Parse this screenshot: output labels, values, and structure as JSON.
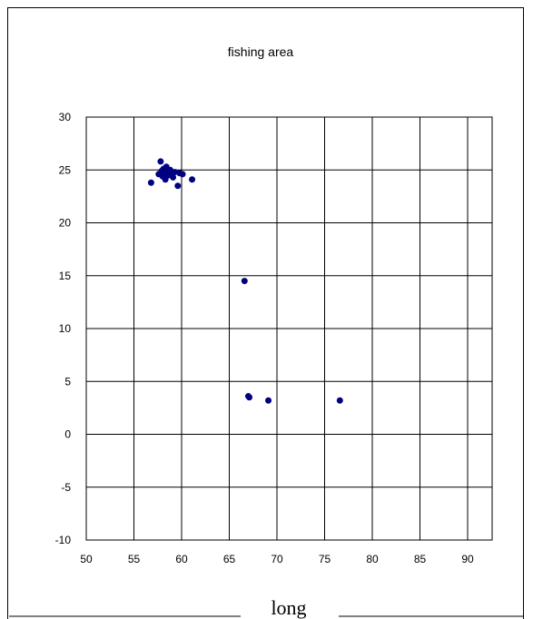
{
  "chart_data": {
    "type": "scatter",
    "title": "fishing area",
    "xlabel": "long",
    "ylabel": "",
    "xlim": [
      50,
      95
    ],
    "ylim": [
      -10,
      30
    ],
    "xticks": [
      50,
      55,
      60,
      65,
      70,
      75,
      80,
      85,
      90
    ],
    "yticks": [
      -10,
      -5,
      0,
      5,
      10,
      15,
      20,
      25,
      30
    ],
    "grid": true,
    "marker_color": "#000080",
    "series": [
      {
        "points": [
          [
            56.8,
            23.8
          ],
          [
            57.6,
            24.6
          ],
          [
            57.8,
            25.8
          ],
          [
            57.9,
            24.9
          ],
          [
            58.0,
            24.4
          ],
          [
            58.1,
            25.1
          ],
          [
            58.2,
            24.7
          ],
          [
            58.3,
            24.1
          ],
          [
            58.4,
            25.3
          ],
          [
            58.5,
            24.9
          ],
          [
            58.6,
            24.5
          ],
          [
            58.7,
            24.8
          ],
          [
            58.8,
            25.0
          ],
          [
            59.0,
            24.6
          ],
          [
            59.1,
            24.3
          ],
          [
            59.3,
            24.8
          ],
          [
            59.6,
            23.5
          ],
          [
            59.8,
            24.7
          ],
          [
            60.1,
            24.6
          ],
          [
            61.1,
            24.1
          ],
          [
            66.6,
            14.5
          ],
          [
            67.0,
            3.6
          ],
          [
            67.1,
            3.5
          ],
          [
            69.1,
            3.2
          ],
          [
            76.6,
            3.2
          ]
        ]
      }
    ]
  }
}
